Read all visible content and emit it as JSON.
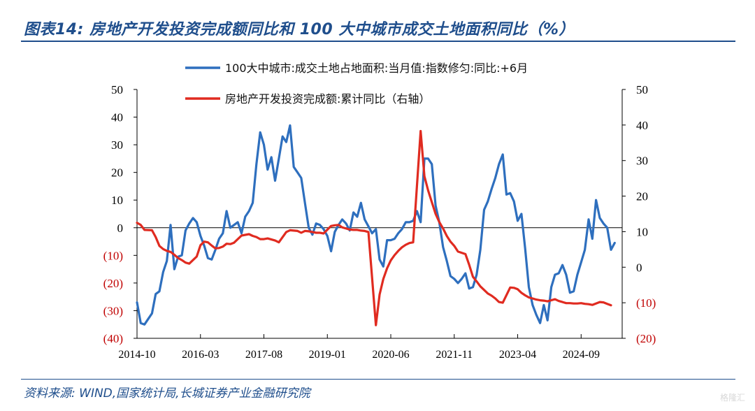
{
  "title": "图表14:  房地产开发投资完成额同比和 100 大中城市成交土地面积同比（%）",
  "source": "资料来源:  WIND,国家统计局,长城证券产业金融研究院",
  "watermark": "格隆汇",
  "chart_data": {
    "type": "line",
    "left_axis": {
      "ylim": [
        -40,
        50
      ],
      "ticks": [
        50,
        40,
        30,
        20,
        10,
        0,
        -10,
        -20,
        -30,
        -40
      ],
      "tick_labels": [
        "50",
        "40",
        "30",
        "20",
        "10",
        "0",
        "(10)",
        "(20)",
        "(30)",
        "(40)"
      ]
    },
    "right_axis": {
      "ylim": [
        -20,
        50
      ],
      "ticks": [
        50,
        40,
        30,
        20,
        10,
        0,
        -10,
        -20
      ],
      "tick_labels": [
        "50",
        "40",
        "30",
        "20",
        "10",
        "0",
        "(10)",
        "(20)"
      ]
    },
    "x_ticks": [
      "2014-10",
      "2016-03",
      "2017-08",
      "2019-01",
      "2020-06",
      "2021-11",
      "2023-04",
      "2024-09"
    ],
    "x_range": [
      "2014-10",
      "2025-08"
    ],
    "legend_position": "top-center",
    "series": [
      {
        "name": "100大中城市:成交土地占地面积:当月值:指数修匀:同比:+6月",
        "axis": "left",
        "color": "#2e6fbe",
        "points": [
          [
            "2014-10",
            -27
          ],
          [
            "2014-11",
            -34.5
          ],
          [
            "2014-12",
            -35
          ],
          [
            "2015-01",
            -33
          ],
          [
            "2015-02",
            -31
          ],
          [
            "2015-03",
            -24
          ],
          [
            "2015-04",
            -23
          ],
          [
            "2015-05",
            -16
          ],
          [
            "2015-06",
            -12
          ],
          [
            "2015-07",
            1
          ],
          [
            "2015-08",
            -15
          ],
          [
            "2015-09",
            -10.5
          ],
          [
            "2015-10",
            -10
          ],
          [
            "2015-11",
            -1
          ],
          [
            "2015-12",
            1.5
          ],
          [
            "2016-01",
            3.5
          ],
          [
            "2016-02",
            2
          ],
          [
            "2016-03",
            -3
          ],
          [
            "2016-04",
            -6.5
          ],
          [
            "2016-05",
            -11
          ],
          [
            "2016-06",
            -11.5
          ],
          [
            "2016-07",
            -8
          ],
          [
            "2016-08",
            -4
          ],
          [
            "2016-09",
            -2
          ],
          [
            "2016-10",
            6
          ],
          [
            "2016-11",
            0
          ],
          [
            "2016-12",
            1
          ],
          [
            "2017-01",
            2
          ],
          [
            "2017-02",
            -2
          ],
          [
            "2017-03",
            4
          ],
          [
            "2017-04",
            6
          ],
          [
            "2017-05",
            9
          ],
          [
            "2017-06",
            23
          ],
          [
            "2017-07",
            34.5
          ],
          [
            "2017-08",
            30
          ],
          [
            "2017-09",
            21
          ],
          [
            "2017-10",
            25.5
          ],
          [
            "2017-11",
            17
          ],
          [
            "2017-12",
            25
          ],
          [
            "2018-01",
            33
          ],
          [
            "2018-02",
            31
          ],
          [
            "2018-03",
            37
          ],
          [
            "2018-04",
            22
          ],
          [
            "2018-05",
            20
          ],
          [
            "2018-06",
            18
          ],
          [
            "2018-07",
            9
          ],
          [
            "2018-08",
            0
          ],
          [
            "2018-09",
            -2.5
          ],
          [
            "2018-10",
            1.5
          ],
          [
            "2018-11",
            1
          ],
          [
            "2018-12",
            -0.5
          ],
          [
            "2019-01",
            -3
          ],
          [
            "2019-02",
            -8.5
          ],
          [
            "2019-03",
            -1.5
          ],
          [
            "2019-04",
            1
          ],
          [
            "2019-05",
            3
          ],
          [
            "2019-06",
            1.5
          ],
          [
            "2019-07",
            -1
          ],
          [
            "2019-08",
            5.5
          ],
          [
            "2019-09",
            4
          ],
          [
            "2019-10",
            9
          ],
          [
            "2019-11",
            3
          ],
          [
            "2019-12",
            0.5
          ],
          [
            "2020-01",
            -2
          ],
          [
            "2020-02",
            -0.5
          ],
          [
            "2020-03",
            -11.5
          ],
          [
            "2020-04",
            -14
          ],
          [
            "2020-05",
            -4.5
          ],
          [
            "2020-06",
            -4.5
          ],
          [
            "2020-07",
            -4
          ],
          [
            "2020-08",
            -2
          ],
          [
            "2020-09",
            -0.5
          ],
          [
            "2020-10",
            2
          ],
          [
            "2020-11",
            2
          ],
          [
            "2020-12",
            2.5
          ],
          [
            "2021-01",
            6
          ],
          [
            "2021-02",
            2
          ],
          [
            "2021-03",
            25
          ],
          [
            "2021-04",
            25
          ],
          [
            "2021-05",
            23
          ],
          [
            "2021-06",
            8
          ],
          [
            "2021-07",
            2
          ],
          [
            "2021-08",
            -7
          ],
          [
            "2021-09",
            -12
          ],
          [
            "2021-10",
            -17.5
          ],
          [
            "2021-11",
            -18.5
          ],
          [
            "2021-12",
            -20
          ],
          [
            "2022-01",
            -18.5
          ],
          [
            "2022-02",
            -16.5
          ],
          [
            "2022-03",
            -22
          ],
          [
            "2022-04",
            -21.5
          ],
          [
            "2022-05",
            -17
          ],
          [
            "2022-06",
            -8
          ],
          [
            "2022-07",
            6.5
          ],
          [
            "2022-08",
            9.5
          ],
          [
            "2022-09",
            14
          ],
          [
            "2022-10",
            18
          ],
          [
            "2022-11",
            23
          ],
          [
            "2022-12",
            26.5
          ],
          [
            "2023-01",
            12
          ],
          [
            "2023-02",
            12.5
          ],
          [
            "2023-03",
            9.5
          ],
          [
            "2023-04",
            2.5
          ],
          [
            "2023-05",
            5
          ],
          [
            "2023-06",
            -7.5
          ],
          [
            "2023-07",
            -21.5
          ],
          [
            "2023-08",
            -28
          ],
          [
            "2023-09",
            -31.5
          ],
          [
            "2023-10",
            -34.5
          ],
          [
            "2023-11",
            -28
          ],
          [
            "2023-12",
            -33.5
          ],
          [
            "2024-01",
            -21.5
          ],
          [
            "2024-02",
            -17
          ],
          [
            "2024-03",
            -16.5
          ],
          [
            "2024-04",
            -13.5
          ],
          [
            "2024-05",
            -17
          ],
          [
            "2024-06",
            -23.5
          ],
          [
            "2024-07",
            -23
          ],
          [
            "2024-08",
            -17
          ],
          [
            "2024-09",
            -12.5
          ],
          [
            "2024-10",
            -8
          ],
          [
            "2024-11",
            3
          ],
          [
            "2024-12",
            -4
          ],
          [
            "2025-01",
            10
          ],
          [
            "2025-02",
            3.5
          ],
          [
            "2025-03",
            1.5
          ],
          [
            "2025-04",
            0
          ],
          [
            "2025-05",
            -8
          ],
          [
            "2025-06",
            -5.5
          ]
        ]
      },
      {
        "name": "房地产开发投资完成额:累计同比（右轴）",
        "axis": "right",
        "color": "#e02b20",
        "points": [
          [
            "2014-10",
            12.5
          ],
          [
            "2014-11",
            11.9
          ],
          [
            "2014-12",
            10.5
          ],
          [
            "2015-02",
            10.4
          ],
          [
            "2015-03",
            8.5
          ],
          [
            "2015-04",
            6.0
          ],
          [
            "2015-05",
            5.1
          ],
          [
            "2015-06",
            4.6
          ],
          [
            "2015-07",
            4.3
          ],
          [
            "2015-08",
            3.5
          ],
          [
            "2015-09",
            2.6
          ],
          [
            "2015-10",
            2.0
          ],
          [
            "2015-11",
            1.3
          ],
          [
            "2015-12",
            1.0
          ],
          [
            "2016-02",
            3.0
          ],
          [
            "2016-03",
            6.2
          ],
          [
            "2016-04",
            7.2
          ],
          [
            "2016-05",
            7.0
          ],
          [
            "2016-06",
            6.1
          ],
          [
            "2016-07",
            5.3
          ],
          [
            "2016-08",
            5.4
          ],
          [
            "2016-09",
            5.8
          ],
          [
            "2016-10",
            6.6
          ],
          [
            "2016-11",
            6.5
          ],
          [
            "2016-12",
            6.9
          ],
          [
            "2017-02",
            8.9
          ],
          [
            "2017-03",
            9.1
          ],
          [
            "2017-04",
            9.3
          ],
          [
            "2017-05",
            8.8
          ],
          [
            "2017-06",
            8.5
          ],
          [
            "2017-07",
            7.9
          ],
          [
            "2017-08",
            7.9
          ],
          [
            "2017-09",
            8.1
          ],
          [
            "2017-10",
            7.8
          ],
          [
            "2017-11",
            7.5
          ],
          [
            "2017-12",
            7.0
          ],
          [
            "2018-02",
            9.9
          ],
          [
            "2018-03",
            10.4
          ],
          [
            "2018-04",
            10.3
          ],
          [
            "2018-05",
            10.2
          ],
          [
            "2018-06",
            9.7
          ],
          [
            "2018-07",
            10.2
          ],
          [
            "2018-08",
            10.1
          ],
          [
            "2018-09",
            9.9
          ],
          [
            "2018-10",
            9.7
          ],
          [
            "2018-11",
            9.7
          ],
          [
            "2018-12",
            9.5
          ],
          [
            "2019-02",
            11.6
          ],
          [
            "2019-03",
            11.8
          ],
          [
            "2019-04",
            11.9
          ],
          [
            "2019-05",
            11.2
          ],
          [
            "2019-06",
            10.9
          ],
          [
            "2019-07",
            10.6
          ],
          [
            "2019-08",
            10.5
          ],
          [
            "2019-09",
            10.5
          ],
          [
            "2019-10",
            10.3
          ],
          [
            "2019-11",
            10.2
          ],
          [
            "2019-12",
            9.9
          ],
          [
            "2020-02",
            -16.3
          ],
          [
            "2020-03",
            -7.7
          ],
          [
            "2020-04",
            -3.3
          ],
          [
            "2020-05",
            -0.3
          ],
          [
            "2020-06",
            1.9
          ],
          [
            "2020-07",
            3.4
          ],
          [
            "2020-08",
            4.6
          ],
          [
            "2020-09",
            5.6
          ],
          [
            "2020-10",
            6.3
          ],
          [
            "2020-11",
            6.8
          ],
          [
            "2020-12",
            7.0
          ],
          [
            "2021-02",
            38.3
          ],
          [
            "2021-03",
            25.6
          ],
          [
            "2021-04",
            21.6
          ],
          [
            "2021-05",
            18.3
          ],
          [
            "2021-06",
            15.0
          ],
          [
            "2021-07",
            12.7
          ],
          [
            "2021-08",
            10.9
          ],
          [
            "2021-09",
            8.8
          ],
          [
            "2021-10",
            7.2
          ],
          [
            "2021-11",
            6.0
          ],
          [
            "2021-12",
            4.4
          ],
          [
            "2022-02",
            3.7
          ],
          [
            "2022-03",
            0.7
          ],
          [
            "2022-04",
            -2.7
          ],
          [
            "2022-05",
            -4.0
          ],
          [
            "2022-06",
            -5.4
          ],
          [
            "2022-07",
            -6.4
          ],
          [
            "2022-08",
            -7.4
          ],
          [
            "2022-09",
            -8.0
          ],
          [
            "2022-10",
            -8.8
          ],
          [
            "2022-11",
            -9.8
          ],
          [
            "2022-12",
            -10.0
          ],
          [
            "2023-02",
            -5.7
          ],
          [
            "2023-03",
            -5.8
          ],
          [
            "2023-04",
            -6.2
          ],
          [
            "2023-05",
            -7.2
          ],
          [
            "2023-06",
            -7.9
          ],
          [
            "2023-07",
            -8.5
          ],
          [
            "2023-08",
            -8.8
          ],
          [
            "2023-09",
            -9.1
          ],
          [
            "2023-10",
            -9.3
          ],
          [
            "2023-11",
            -9.4
          ],
          [
            "2023-12",
            -9.6
          ],
          [
            "2024-02",
            -9.0
          ],
          [
            "2024-03",
            -9.5
          ],
          [
            "2024-04",
            -9.8
          ],
          [
            "2024-05",
            -10.1
          ],
          [
            "2024-06",
            -10.1
          ],
          [
            "2024-07",
            -10.2
          ],
          [
            "2024-08",
            -10.2
          ],
          [
            "2024-09",
            -10.1
          ],
          [
            "2024-10",
            -10.3
          ],
          [
            "2024-11",
            -10.4
          ],
          [
            "2024-12",
            -10.6
          ],
          [
            "2025-02",
            -9.8
          ],
          [
            "2025-03",
            -9.9
          ],
          [
            "2025-04",
            -10.3
          ],
          [
            "2025-05",
            -10.7
          ]
        ]
      }
    ]
  }
}
